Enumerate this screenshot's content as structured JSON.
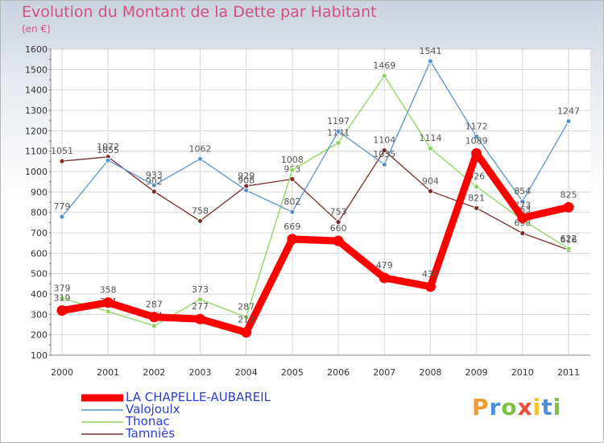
{
  "header": {
    "title": "Evolution du Montant de la Dette par Habitant",
    "unit": "(en €)"
  },
  "logo": {
    "text": "Proxiti",
    "colors": [
      "#f29a2e",
      "#4a90d9",
      "#7cc242",
      "#e84c3d",
      "#f2c12e",
      "#4a90d9",
      "#7cc242"
    ]
  },
  "chart_data": {
    "type": "line",
    "x": [
      "2000",
      "2001",
      "2002",
      "2003",
      "2004",
      "2005",
      "2006",
      "2007",
      "2008",
      "2009",
      "2010",
      "2011"
    ],
    "ylim": [
      100,
      1600
    ],
    "yticks": [
      100,
      200,
      300,
      400,
      500,
      600,
      700,
      800,
      900,
      1000,
      1100,
      1200,
      1300,
      1400,
      1500,
      1600
    ],
    "grid": true,
    "legend": "bottom-left",
    "series": [
      {
        "name": "Tamniès",
        "color": "#7b2c2c",
        "values": [
          1051,
          1072,
          902,
          758,
          929,
          963,
          753,
          1104,
          904,
          821,
          698,
          616
        ]
      },
      {
        "name": "Thonac",
        "color": "#8fd35a",
        "values": [
          379,
          314,
          244,
          373,
          287,
          1008,
          1141,
          1469,
          1114,
          926,
          763,
          622
        ]
      },
      {
        "name": "Valojoulx",
        "color": "#5b93c9",
        "values": [
          779,
          1055,
          933,
          1062,
          908,
          802,
          1197,
          1035,
          1541,
          1172,
          854,
          1247
        ]
      },
      {
        "name": "LA CHAPELLE-AUBAREIL",
        "color": "#ff0000",
        "values": [
          319,
          358,
          287,
          277,
          212,
          669,
          660,
          479,
          436,
          1089,
          773,
          825
        ],
        "bold": true
      }
    ]
  }
}
